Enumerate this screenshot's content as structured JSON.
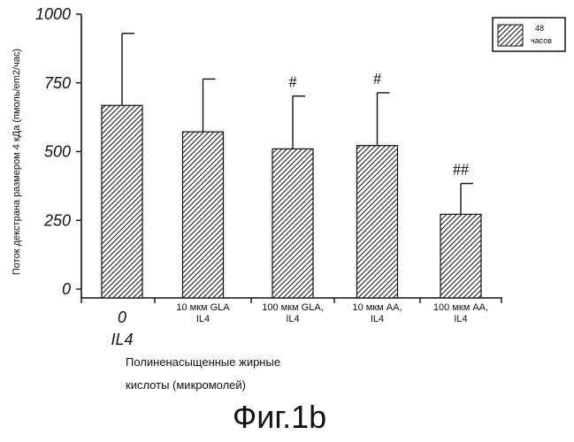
{
  "chart_data": {
    "type": "bar",
    "title": "",
    "ylabel": "Поток декстрана размером 4 кДа (пмоль/em2/час)",
    "xlabel_line1": "Полиненасыщенные жирные",
    "xlabel_line2": "кислоты  (микромолей)",
    "ylim": [
      0,
      1000
    ],
    "yticks": [
      "0",
      "250",
      "500",
      "750",
      "1000"
    ],
    "categories": [
      [
        "0",
        "IL4"
      ],
      [
        "10 мкм GLA",
        "IL4"
      ],
      [
        "100 мкм GLA,",
        "IL4"
      ],
      [
        "10 мкм AA,",
        "IL4"
      ],
      [
        "100 мкм AA,",
        "IL4"
      ]
    ],
    "series": [
      {
        "name": "48 часов",
        "values": [
          668,
          572,
          510,
          522,
          272
        ],
        "errors": [
          262,
          192,
          192,
          192,
          112
        ]
      }
    ],
    "annotations": [
      "",
      "",
      "#",
      "#",
      "##"
    ],
    "legend_position": "top-right",
    "grid": false
  },
  "legend": {
    "line1": "48",
    "line2": "часов"
  },
  "caption": "Фиг.1b",
  "colors": {
    "bar_pattern": "#222222",
    "axis": "#111111"
  }
}
